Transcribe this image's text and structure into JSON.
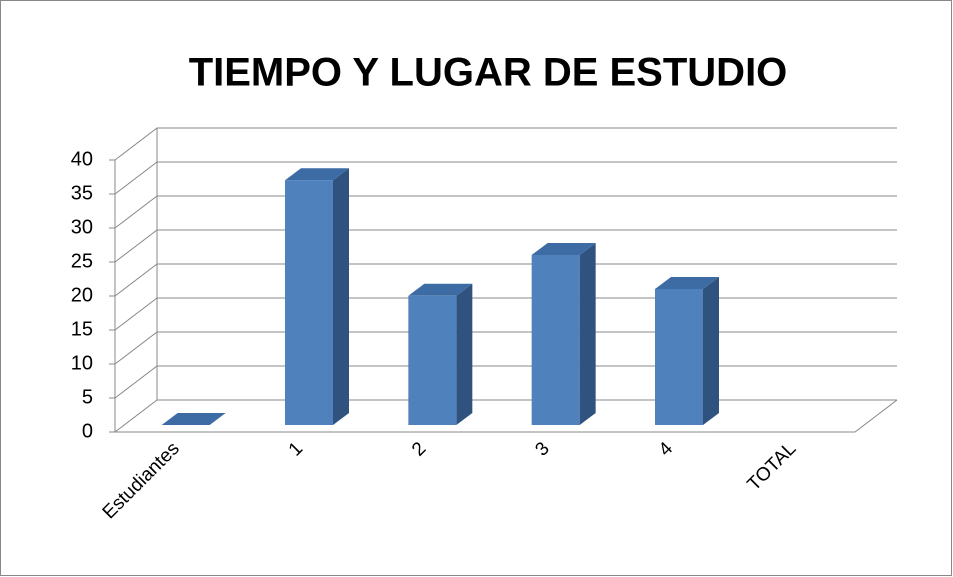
{
  "chart_data": {
    "type": "bar3d",
    "title": "TIEMPO Y LUGAR DE ESTUDIO",
    "categories": [
      "Estudiantes",
      "1",
      "2",
      "3",
      "4",
      "TOTAL"
    ],
    "values": [
      0,
      36,
      19,
      25,
      20,
      null
    ],
    "color": "#4f81bd",
    "ylim": [
      0,
      40
    ],
    "yticks": [
      0,
      5,
      10,
      15,
      20,
      25,
      30,
      35,
      40
    ],
    "grid": true
  }
}
